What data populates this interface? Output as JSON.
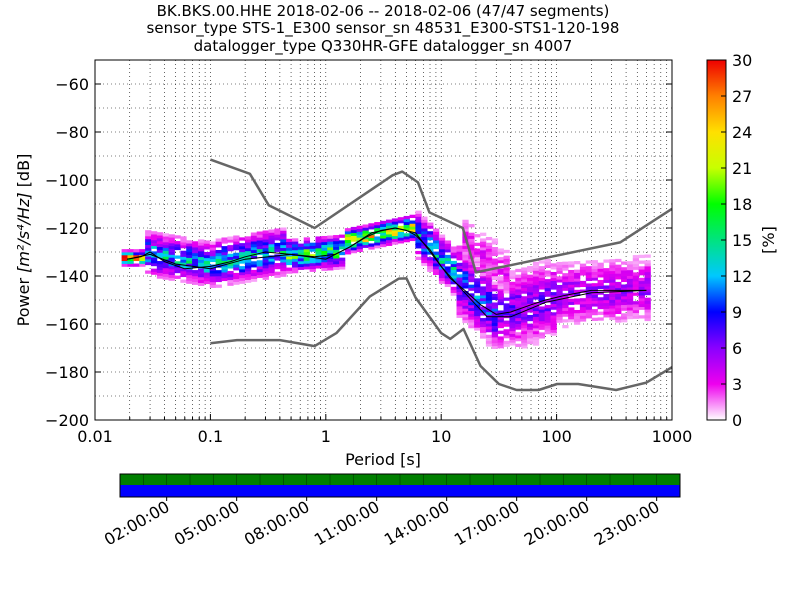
{
  "chart_data": {
    "type": "heatmap",
    "title_lines": [
      "BK.BKS.00.HHE   2018-02-06 -- 2018-02-06  (47/47 segments)",
      "sensor_type STS-1_E300 sensor_sn 48531_E300-STS1-120-198",
      "datalogger_type Q330HR-GFE datalogger_sn 4007"
    ],
    "xlabel": "Period [s]",
    "ylabel_prefix": "Power ",
    "ylabel_units": "[m²/s⁴/Hz]",
    "ylabel_suffix": " [dB]",
    "x_scale": "log",
    "xlim": [
      0.01,
      1000
    ],
    "ylim": [
      -200,
      -50
    ],
    "x_ticks": [
      {
        "value": 0.01,
        "label": "0.01"
      },
      {
        "value": 0.1,
        "label": "0.1"
      },
      {
        "value": 1,
        "label": "1"
      },
      {
        "value": 10,
        "label": "10"
      },
      {
        "value": 100,
        "label": "100"
      },
      {
        "value": 1000,
        "label": "1000"
      }
    ],
    "y_ticks": [
      {
        "value": -60,
        "label": "−60"
      },
      {
        "value": -80,
        "label": "−80"
      },
      {
        "value": -100,
        "label": "−100"
      },
      {
        "value": -120,
        "label": "−120"
      },
      {
        "value": -140,
        "label": "−140"
      },
      {
        "value": -160,
        "label": "−160"
      },
      {
        "value": -180,
        "label": "−180"
      },
      {
        "value": -200,
        "label": "−200"
      }
    ],
    "grid": true,
    "colorbar": {
      "label": "[%]",
      "min": 0,
      "max": 30,
      "ticks": [
        {
          "value": 0,
          "label": "0"
        },
        {
          "value": 3,
          "label": "3"
        },
        {
          "value": 6,
          "label": "6"
        },
        {
          "value": 9,
          "label": "9"
        },
        {
          "value": 12,
          "label": "12"
        },
        {
          "value": 15,
          "label": "15"
        },
        {
          "value": 18,
          "label": "18"
        },
        {
          "value": 21,
          "label": "21"
        },
        {
          "value": 24,
          "label": "24"
        },
        {
          "value": 27,
          "label": "27"
        },
        {
          "value": 30,
          "label": "30"
        }
      ]
    },
    "nhnm": [
      [
        0.1,
        -91.5
      ],
      [
        0.22,
        -97.4
      ],
      [
        0.32,
        -110.5
      ],
      [
        0.8,
        -120
      ],
      [
        3.8,
        -98
      ],
      [
        4.6,
        -96.5
      ],
      [
        6.3,
        -101
      ],
      [
        7.9,
        -113.5
      ],
      [
        15.4,
        -120
      ],
      [
        20,
        -138.5
      ],
      [
        354.8,
        -126
      ],
      [
        1000,
        -112
      ]
    ],
    "nlnm": [
      [
        0.1,
        -168
      ],
      [
        0.17,
        -166.7
      ],
      [
        0.4,
        -166.7
      ],
      [
        0.8,
        -169.2
      ],
      [
        1.24,
        -163.7
      ],
      [
        2.4,
        -148.6
      ],
      [
        4.3,
        -141.1
      ],
      [
        5,
        -141
      ],
      [
        6,
        -149
      ],
      [
        10,
        -163.8
      ],
      [
        12,
        -166.2
      ],
      [
        15.6,
        -162.1
      ],
      [
        21.9,
        -177.5
      ],
      [
        31.6,
        -185
      ],
      [
        45,
        -187.5
      ],
      [
        70,
        -187.5
      ],
      [
        101,
        -185
      ],
      [
        154,
        -185
      ],
      [
        328,
        -187.5
      ],
      [
        600,
        -184.4
      ],
      [
        1000,
        -178
      ]
    ],
    "mean_line": [
      [
        0.019,
        -133
      ],
      [
        0.025,
        -132
      ],
      [
        0.03,
        -130
      ],
      [
        0.04,
        -134
      ],
      [
        0.06,
        -137
      ],
      [
        0.1,
        -136
      ],
      [
        0.15,
        -134
      ],
      [
        0.2,
        -132
      ],
      [
        0.3,
        -130
      ],
      [
        0.5,
        -131
      ],
      [
        0.8,
        -132
      ],
      [
        1.2,
        -131
      ],
      [
        1.6,
        -128
      ],
      [
        2.2,
        -124
      ],
      [
        3,
        -121
      ],
      [
        4,
        -120
      ],
      [
        5,
        -121
      ],
      [
        6,
        -123
      ],
      [
        8,
        -129
      ],
      [
        10,
        -136
      ],
      [
        12,
        -141
      ],
      [
        16,
        -146
      ],
      [
        22,
        -152
      ],
      [
        30,
        -156
      ],
      [
        40,
        -155
      ],
      [
        60,
        -152
      ],
      [
        80,
        -150
      ],
      [
        120,
        -148
      ],
      [
        200,
        -146
      ],
      [
        400,
        -146
      ],
      [
        600,
        -146
      ]
    ],
    "mode_line": [
      [
        0.019,
        -133
      ],
      [
        0.03,
        -131
      ],
      [
        0.05,
        -135
      ],
      [
        0.1,
        -137
      ],
      [
        0.2,
        -133
      ],
      [
        0.5,
        -131
      ],
      [
        1,
        -133
      ],
      [
        1.6,
        -128
      ],
      [
        2.5,
        -122
      ],
      [
        4,
        -120
      ],
      [
        6,
        -122
      ],
      [
        10,
        -136
      ],
      [
        16,
        -147
      ],
      [
        25,
        -157
      ],
      [
        40,
        -157
      ],
      [
        80,
        -151
      ],
      [
        200,
        -147
      ],
      [
        600,
        -146
      ]
    ],
    "density_bands": [
      {
        "x_min": 0.018,
        "x_max": 0.028,
        "center": [
          -133,
          -133
        ],
        "width": 3,
        "peak": 26
      },
      {
        "x_min": 0.028,
        "x_max": 0.11,
        "center": [
          -131,
          -136
        ],
        "width": 9,
        "peak": 12
      },
      {
        "x_min": 0.11,
        "x_max": 0.45,
        "center": [
          -135,
          -130
        ],
        "width": 10,
        "peak": 12
      },
      {
        "x_min": 0.45,
        "x_max": 1.5,
        "center": [
          -132,
          -130
        ],
        "width": 7,
        "peak": 16
      },
      {
        "x_min": 1.5,
        "x_max": 6,
        "center": [
          -126,
          -120
        ],
        "width": 5,
        "peak": 22
      },
      {
        "x_min": 6,
        "x_max": 14,
        "center": [
          -122,
          -140
        ],
        "width": 10,
        "peak": 12
      },
      {
        "x_min": 14,
        "x_max": 30,
        "center": [
          -142,
          -156
        ],
        "width": 16,
        "peak": 9
      },
      {
        "x_min": 30,
        "x_max": 100,
        "center": [
          -156,
          -150
        ],
        "width": 18,
        "peak": 6
      },
      {
        "x_min": 100,
        "x_max": 630,
        "center": [
          -148,
          -146
        ],
        "width": 15,
        "peak": 5
      },
      {
        "x_min": 15,
        "x_max": 40,
        "center": [
          -125,
          -140
        ],
        "width": 12,
        "peak": 3
      }
    ]
  },
  "timeline": {
    "labels": [
      "02:00:00",
      "05:00:00",
      "08:00:00",
      "11:00:00",
      "14:00:00",
      "17:00:00",
      "20:00:00",
      "23:00:00"
    ],
    "label_hours": [
      2,
      5,
      8,
      11,
      14,
      17,
      20,
      23
    ],
    "top_color": "#007f00",
    "bottom_color": "#0000ff"
  }
}
